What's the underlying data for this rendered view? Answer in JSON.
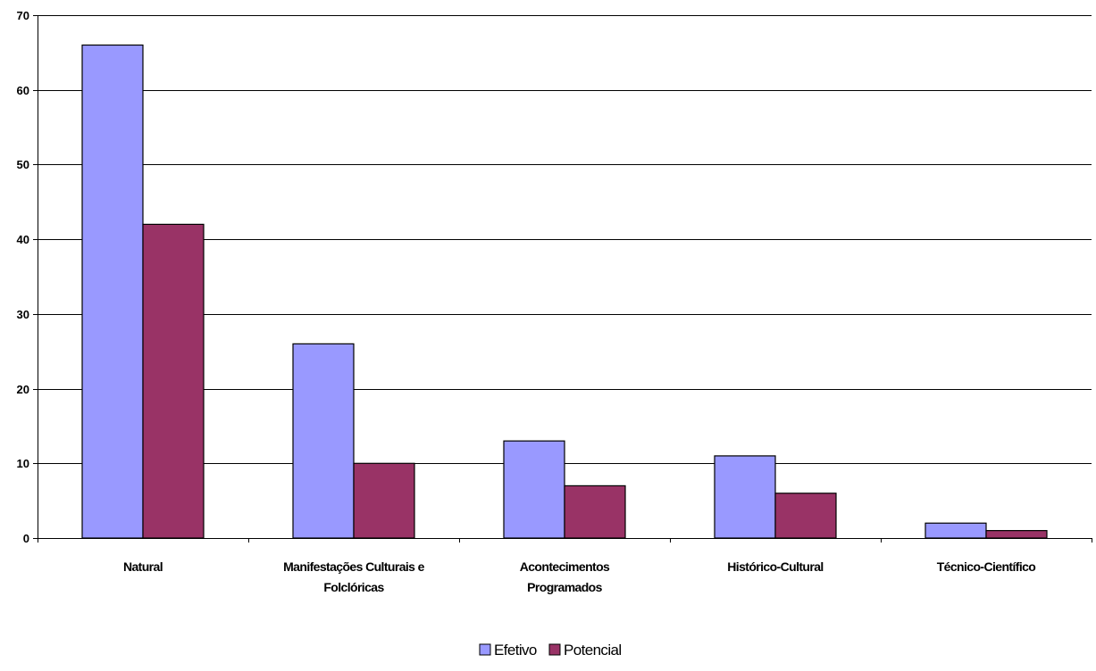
{
  "chart_data": {
    "type": "bar",
    "title": "",
    "xlabel": "",
    "ylabel": "",
    "categories": [
      [
        "Natural"
      ],
      [
        "Manifestações Culturais e",
        "Folclóricas"
      ],
      [
        "Acontecimentos",
        "Programados"
      ],
      [
        "Histórico-Cultural"
      ],
      [
        "Técnico-Científico"
      ]
    ],
    "series": [
      {
        "name": "Efetivo",
        "values": [
          66,
          26,
          13,
          11,
          2
        ],
        "color": "#9999ff"
      },
      {
        "name": "Potencial",
        "values": [
          42,
          10,
          7,
          6,
          1
        ],
        "color": "#993366"
      }
    ],
    "ylim": [
      0,
      70
    ],
    "yticks": [
      "0",
      "10",
      "20",
      "30",
      "40",
      "50",
      "60",
      "70"
    ],
    "grid": true,
    "legend_position": "bottom-center"
  }
}
